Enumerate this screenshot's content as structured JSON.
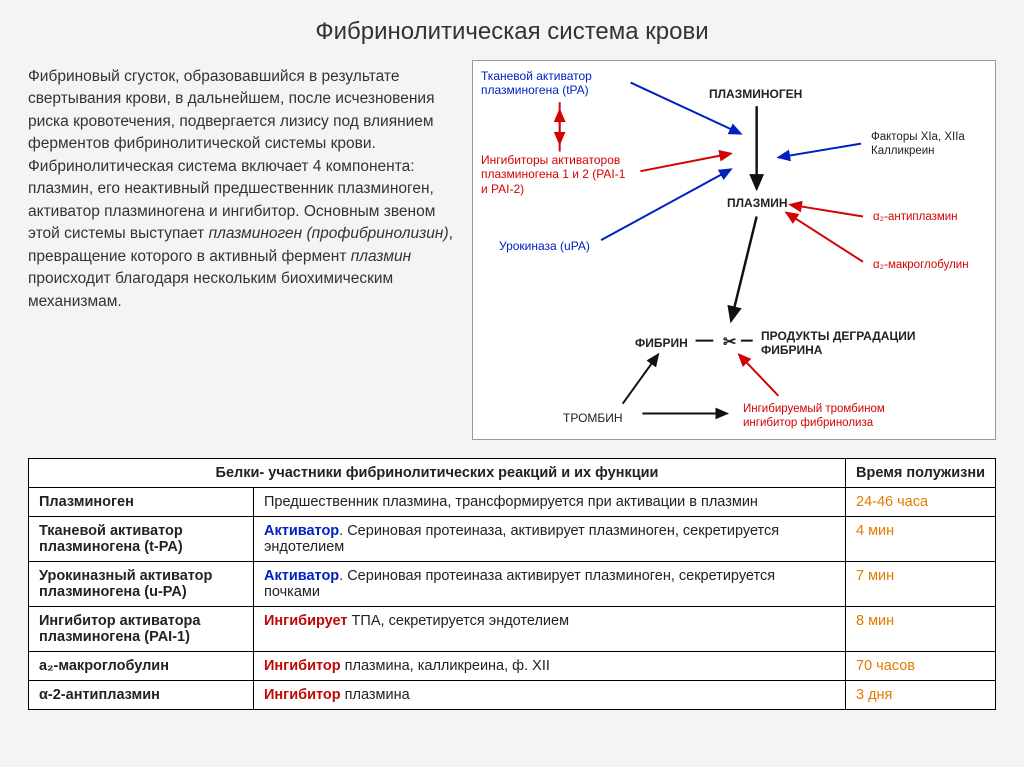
{
  "title": "Фибринолитическая система крови",
  "paragraph": {
    "p1": "Фибриновый сгусток, образовавшийся в результате свертывания крови, в дальнейшем, после исчезновения риска кровотечения, подвергается лизису под влиянием ферментов фибринолитической системы крови. Фибринолитическая система включает 4 компонента: плазмин, его неактивный предшественник плазминоген, активатор плазминогена и ингибитор. Основным звеном этой системы выступает ",
    "i1": "плазминоген (профибринолизин)",
    "p2": ", превращение которого в активный фермент ",
    "i2": "плазмин",
    "p3": " происходит благодаря нескольким биохимическим механизмам."
  },
  "diagram": {
    "tpa": "Тканевой активатор\nплазминогена (tPA)",
    "plasminogen": "ПЛАЗМИНОГЕН",
    "inhibitors": "Ингибиторы активаторов\nплазминогена 1 и 2 (PAI-1\nи PAI-2)",
    "factors": "Факторы XIa, XIIa\nКалликреин",
    "plasmin": "ПЛАЗМИН",
    "urokinase": "Урокиназа (uPA)",
    "a2anti": "α₂-антиплазмин",
    "a2macro": "α₂-макроглобулин",
    "fibrin": "ФИБРИН",
    "products": "ПРОДУКТЫ ДЕГРАДАЦИИ\nФИБРИНА",
    "scissors": "✂",
    "thrombin": "ТРОМБИН",
    "tafi": "Ингибируемый тромбином\nингибитор фибринолиза",
    "colors": {
      "red": "#d40202",
      "blue": "#0020c0",
      "black": "#111111"
    }
  },
  "table": {
    "head_name": "Белки- участники фибринолитических реакций и их  функции",
    "head_time": "Время полужизни",
    "rows": [
      {
        "name": "Плазминоген",
        "fn_pre": "",
        "fn_type": "",
        "fn_text": "Предшественник плазмина, трансформируется при активации в плазмин",
        "time": "24-46 часа",
        "time_class": "orange"
      },
      {
        "name": "Тканевой активатор плазминогена (t-PA)",
        "fn_pre": "Активатор",
        "fn_type": "activator",
        "fn_text": ". Сериновая протеиназа, активирует плазминоген, секретируется эндотелием",
        "time": "4 мин",
        "time_class": "orange"
      },
      {
        "name": "Урокиназный активатор плазминогена (u-PA)",
        "fn_pre": "Активатор",
        "fn_type": "activator",
        "fn_text": ". Сериновая протеиназа активирует плазминоген, секретируется почками",
        "time": "7 мин",
        "time_class": "orange"
      },
      {
        "name": "Ингибитор активатора плазминогена  (PAI-1)",
        "fn_pre": "Ингибирует",
        "fn_type": "inhibitor",
        "fn_text": " ТПА, секретируется эндотелием",
        "time": "8 мин",
        "time_class": "orange"
      },
      {
        "name": "a₂-макроглобулин",
        "fn_pre": "Ингибитор",
        "fn_type": "inhibitor",
        "fn_text": " плазмина, калликреина, ф. XII",
        "time": "70 часов",
        "time_class": "orange"
      },
      {
        "name": "α-2-антиплазмин",
        "fn_pre": "Ингибитор",
        "fn_type": "inhibitor",
        "fn_text": " плазмина",
        "time": "3 дня",
        "time_class": "orange"
      }
    ]
  }
}
